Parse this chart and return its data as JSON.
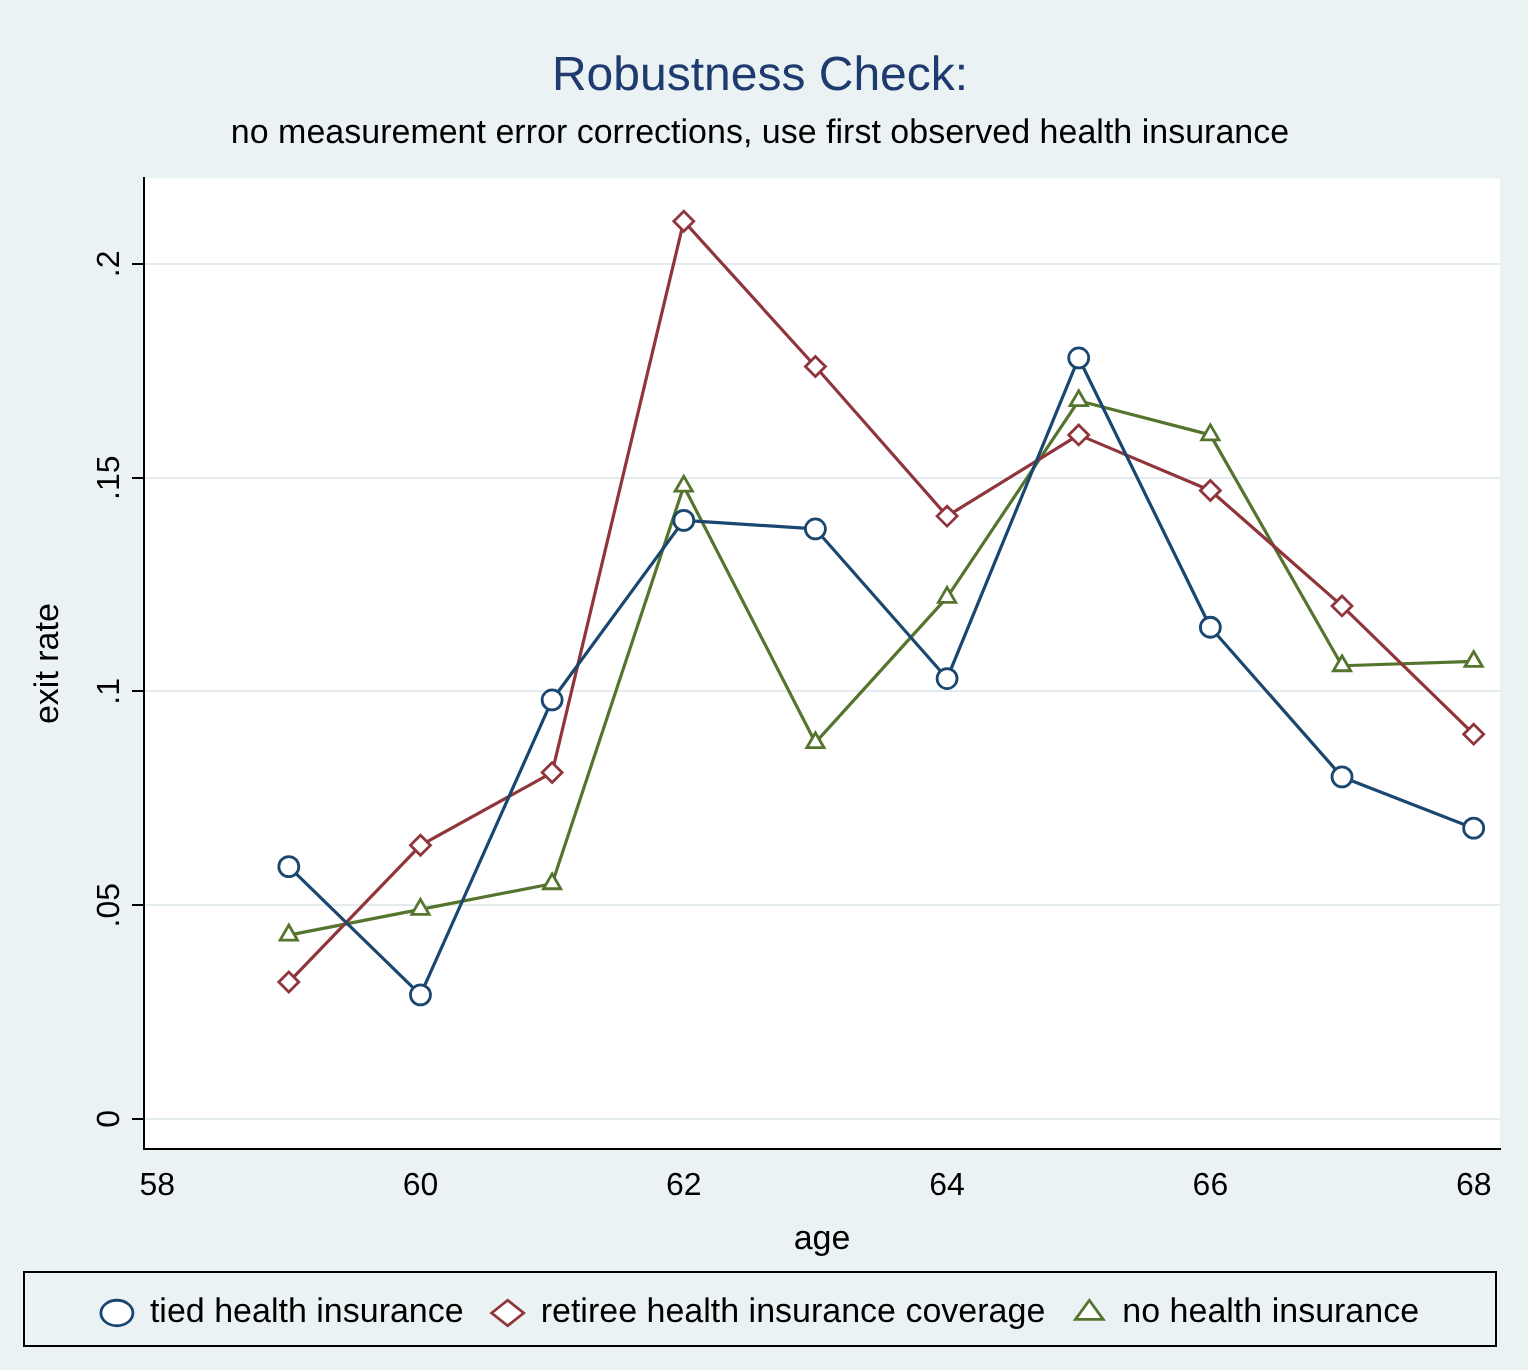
{
  "chart_data": {
    "type": "line",
    "title": "Robustness Check:",
    "subtitle": "no measurement error corrections, use first observed health insurance",
    "xlabel": "age",
    "ylabel": "exit rate",
    "x": [
      59,
      60,
      61,
      62,
      63,
      64,
      65,
      66,
      67,
      68
    ],
    "series": [
      {
        "name": "tied health insurance",
        "color": "#1a476f",
        "marker": "circle",
        "values": [
          0.059,
          0.029,
          0.098,
          0.14,
          0.138,
          0.103,
          0.178,
          0.115,
          0.08,
          0.068
        ]
      },
      {
        "name": "retiree health insurance coverage",
        "color": "#90353b",
        "marker": "diamond",
        "values": [
          0.032,
          0.064,
          0.081,
          0.21,
          0.176,
          0.141,
          0.16,
          0.147,
          0.12,
          0.09
        ]
      },
      {
        "name": "no health insurance",
        "color": "#55752f",
        "marker": "triangle",
        "values": [
          0.043,
          0.049,
          0.055,
          0.148,
          0.088,
          0.122,
          0.168,
          0.16,
          0.106,
          0.107
        ]
      }
    ],
    "xlim": [
      57.9,
      68.2
    ],
    "xticks": [
      58,
      60,
      62,
      64,
      66,
      68
    ],
    "ylim": [
      -0.007,
      0.22
    ],
    "yticks": [
      0,
      {
        "value": 0.05,
        "label": ".05"
      },
      {
        "value": 0.1,
        "label": ".1"
      },
      {
        "value": 0.15,
        "label": ".15"
      },
      {
        "value": 0.2,
        "label": ".2"
      }
    ],
    "grid": "y",
    "legend": "bottom",
    "line_style": "solid"
  }
}
